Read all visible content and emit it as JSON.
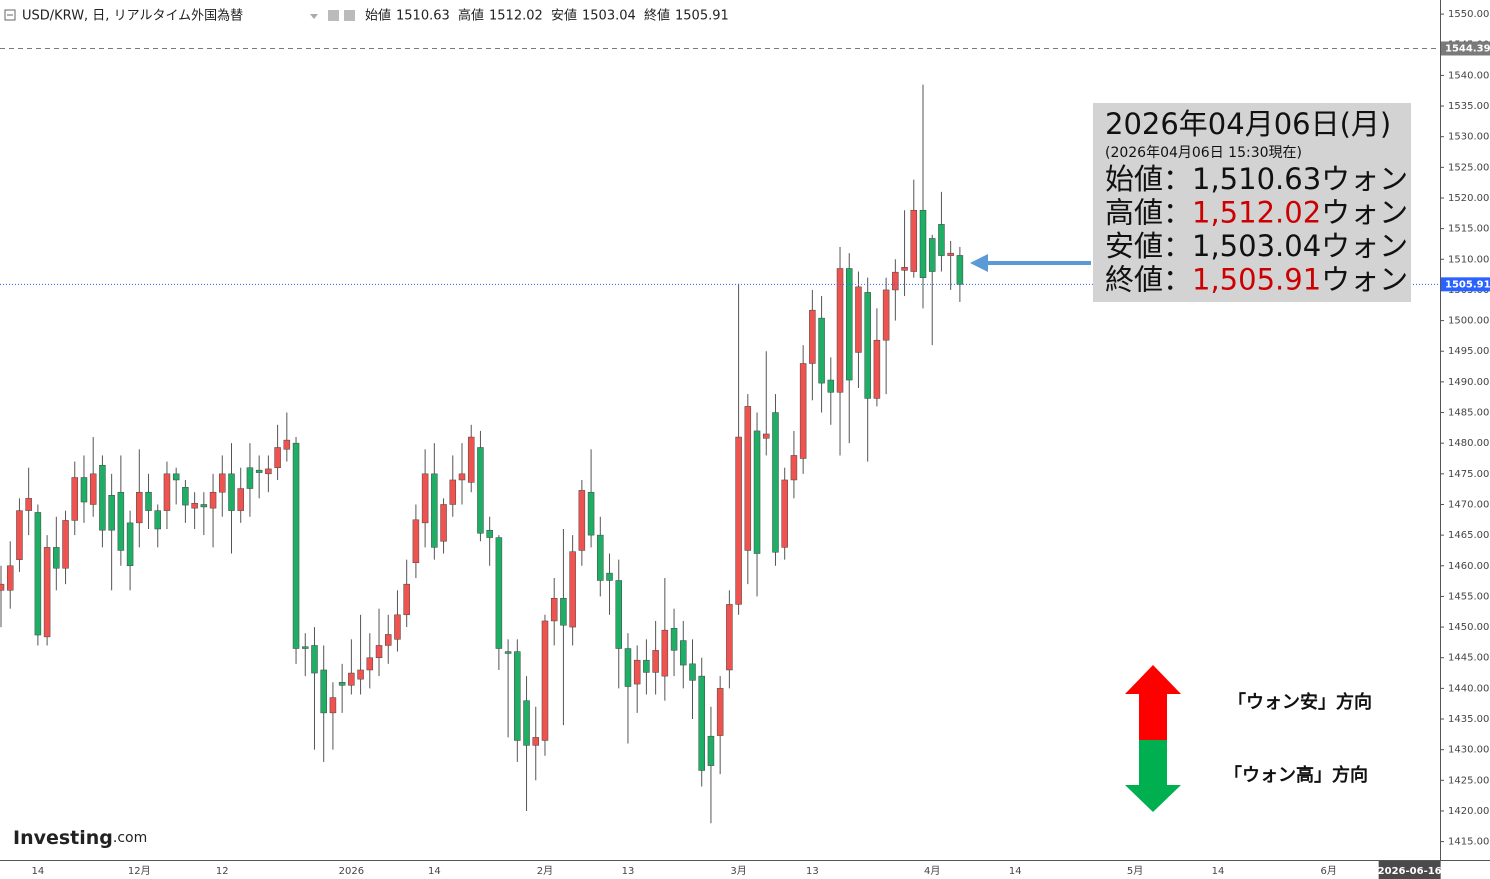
{
  "header": {
    "symbol": "USD/KRW, 日, リアルタイム外国為替",
    "ohlc_labels": [
      "始値",
      "高値",
      "安値",
      "終値"
    ]
  },
  "info_box": {
    "date": "2026年04月06日(月)",
    "as_of": "(2026年04月06日 15:30現在)",
    "rows": [
      {
        "label": "始値：",
        "value": "1,510.63",
        "unit": "ウォン",
        "color": "#111111"
      },
      {
        "label": "高値：",
        "value": "1,512.02",
        "unit": "ウォン",
        "color": "#cc0000"
      },
      {
        "label": "安値：",
        "value": "1,503.04",
        "unit": "ウォン",
        "color": "#111111"
      },
      {
        "label": "終値：",
        "value": "1,505.91",
        "unit": "ウォン",
        "color": "#cc0000"
      }
    ]
  },
  "legend": {
    "up": "「ウォン安」方向",
    "down": "「ウォン高」方向"
  },
  "logo": {
    "main": "Investing",
    "suffix": ".com"
  },
  "chart_data": {
    "type": "candlestick",
    "up_color": "#ef5350",
    "down_color": "#1fae66",
    "ylim": [
      1412,
      1552.3
    ],
    "yticks": [
      {
        "value": 1415,
        "label": "1415.00"
      },
      {
        "value": 1420,
        "label": "1420.00"
      },
      {
        "value": 1425,
        "label": "1425.00"
      },
      {
        "value": 1430,
        "label": "1430.00"
      },
      {
        "value": 1435,
        "label": "1435.00"
      },
      {
        "value": 1440,
        "label": "1440.00"
      },
      {
        "value": 1445,
        "label": "1445.00"
      },
      {
        "value": 1450,
        "label": "1450.00"
      },
      {
        "value": 1455,
        "label": "1455.00"
      },
      {
        "value": 1460,
        "label": "1460.00"
      },
      {
        "value": 1465,
        "label": "1465.00"
      },
      {
        "value": 1470,
        "label": "1470.00"
      },
      {
        "value": 1475,
        "label": "1475.00"
      },
      {
        "value": 1480,
        "label": "1480.00"
      },
      {
        "value": 1485,
        "label": "1485.00"
      },
      {
        "value": 1490,
        "label": "1490.00"
      },
      {
        "value": 1495,
        "label": "1495.00"
      },
      {
        "value": 1500,
        "label": "1500.00"
      },
      {
        "value": 1505,
        "label": "1505.00"
      },
      {
        "value": 1510,
        "label": "1510.00"
      },
      {
        "value": 1515,
        "label": "1515.00"
      },
      {
        "value": 1520,
        "label": "1520.00"
      },
      {
        "value": 1525,
        "label": "1525.00"
      },
      {
        "value": 1530,
        "label": "1530.00"
      },
      {
        "value": 1535,
        "label": "1535.00"
      },
      {
        "value": 1540,
        "label": "1540.00"
      },
      {
        "value": 1545,
        "label": "1545.00"
      },
      {
        "value": 1550,
        "label": "1550.00"
      }
    ],
    "price_lines": [
      {
        "value": 1544.39,
        "color": "#7a7a7a",
        "style": "dashed"
      },
      {
        "value": 1505.91,
        "color": "#2962ff",
        "style": "dotted"
      }
    ],
    "categories": [
      null,
      null,
      null,
      null,
      "14",
      null,
      null,
      null,
      null,
      null,
      null,
      null,
      null,
      null,
      null,
      "12月",
      null,
      null,
      null,
      null,
      null,
      null,
      null,
      null,
      "12",
      null,
      null,
      null,
      null,
      null,
      null,
      null,
      null,
      null,
      null,
      null,
      null,
      null,
      "2026",
      null,
      null,
      null,
      null,
      null,
      null,
      null,
      null,
      "14",
      null,
      null,
      null,
      null,
      null,
      null,
      null,
      null,
      null,
      null,
      null,
      "2月",
      null,
      null,
      null,
      null,
      null,
      null,
      null,
      null,
      "13",
      null,
      null,
      null,
      null,
      null,
      null,
      null,
      null,
      null,
      null,
      null,
      "3月",
      null,
      null,
      null,
      null,
      null,
      null,
      null,
      "13",
      null,
      null,
      null,
      null,
      null,
      null,
      null,
      null,
      null,
      null,
      null,
      null,
      "4月",
      null,
      null,
      null,
      null,
      null,
      null,
      null,
      null,
      "14",
      null,
      null,
      null,
      null,
      null,
      null,
      null,
      null,
      null,
      null,
      null,
      null,
      "5月",
      null,
      null,
      null,
      null,
      null,
      null,
      null,
      null,
      "14",
      null,
      null,
      null,
      null,
      null,
      null,
      null,
      null,
      null,
      null,
      null,
      "6月",
      null,
      null,
      null,
      null,
      null,
      null,
      null,
      null,
      "2026-06-16"
    ],
    "open": [
      1456,
      1456,
      1461,
      1469,
      1468.7,
      1448.4,
      1463,
      1459.6,
      1467.4,
      1474.4,
      1470,
      1476.4,
      1471.5,
      1472,
      1467,
      1467,
      1472,
      1469,
      1469,
      1475,
      1472.8,
      1469.4,
      1470,
      1469.4,
      1472,
      1475,
      1469,
      1476,
      1475.6,
      1475,
      1476,
      1479,
      1480,
      1446.8,
      1447,
      1443,
      1436,
      1441,
      1440.5,
      1441.5,
      1443,
      1445,
      1447,
      1448,
      1452,
      1460.5,
      1467,
      1475,
      1464,
      1470,
      1474,
      1473.6,
      1479.3,
      1465.8,
      1464.6,
      1446,
      1446,
      1438,
      1430.7,
      1431.5,
      1451,
      1454.7,
      1450,
      1462.5,
      1472,
      1465,
      1458.8,
      1457.6,
      1446.5,
      1440.7,
      1444.6,
      1442.6,
      1442,
      1449.8,
      1447.8,
      1444,
      1442,
      1432.2,
      1432.3,
      1443,
      1453.7,
      1462.5,
      1482,
      1480.8,
      1485,
      1463,
      1474,
      1477.5,
      1493,
      1500.4,
      1490.3,
      1488.3,
      1508.5,
      1494.8,
      1504.6,
      1487.3,
      1496.8,
      1505,
      1508.2,
      1508,
      1518,
      1513.4,
      1515.7,
      1510.6,
      1510.63,
      null,
      null,
      null,
      null,
      null,
      null,
      null,
      null,
      null,
      null,
      null,
      null,
      null,
      null,
      null,
      null,
      null,
      null,
      null,
      null,
      null,
      null,
      null,
      null,
      null,
      null,
      null,
      null,
      null,
      null,
      null,
      null,
      null,
      null,
      null,
      null,
      null,
      null,
      null,
      null,
      null,
      null,
      null,
      null,
      null,
      null,
      null,
      null,
      null
    ],
    "high": [
      1460,
      1464,
      1471,
      1476,
      1470,
      1465,
      1468,
      1469,
      1477,
      1478,
      1481,
      1478,
      1475,
      1478,
      1469,
      1479,
      1475,
      1470,
      1477,
      1476,
      1474,
      1472,
      1472,
      1475,
      1478,
      1480,
      1476,
      1480,
      1478,
      1478,
      1483,
      1485,
      1481,
      1449,
      1450,
      1447,
      1441,
      1444,
      1448,
      1452,
      1449,
      1453,
      1452,
      1456,
      1461,
      1470,
      1479,
      1480,
      1471,
      1478,
      1480,
      1483,
      1482,
      1468,
      1465,
      1448,
      1448,
      1442,
      1437,
      1452,
      1458,
      1466,
      1465,
      1474,
      1479,
      1468,
      1462,
      1461,
      1449,
      1447,
      1448,
      1451,
      1458,
      1453,
      1451,
      1448,
      1445,
      1437,
      1442,
      1456,
      1506,
      1488,
      1485,
      1495,
      1488,
      1476,
      1482,
      1496,
      1505,
      1504,
      1494,
      1512,
      1511,
      1508,
      1507,
      1502,
      1507,
      1510,
      1518,
      1523,
      1538.5,
      1514,
      1521,
      1513,
      1512.02,
      null,
      null,
      null,
      null,
      null,
      null,
      null,
      null,
      null,
      null,
      null,
      null,
      null,
      null,
      null,
      null,
      null,
      null,
      null,
      null,
      null,
      null,
      null,
      null,
      null,
      null,
      null,
      null,
      null,
      null,
      null,
      null,
      null,
      null,
      null,
      null,
      null,
      null,
      null,
      null,
      null,
      null,
      null,
      null,
      null,
      null,
      null,
      null,
      null
    ],
    "low": [
      1450,
      1453,
      1459,
      1465,
      1447,
      1447,
      1456,
      1457,
      1465,
      1467,
      1468,
      1463,
      1456,
      1460,
      1456,
      1463,
      1466,
      1463,
      1466,
      1470,
      1467,
      1466,
      1465,
      1463,
      1468,
      1462,
      1467,
      1468,
      1471,
      1472,
      1474,
      1477,
      1444,
      1442,
      1430,
      1428,
      1430,
      1436,
      1439,
      1439,
      1440,
      1442,
      1444,
      1446,
      1450,
      1458,
      1463,
      1461,
      1462,
      1468,
      1470,
      1472,
      1464,
      1460,
      1443,
      1432,
      1428,
      1420,
      1425,
      1429,
      1447,
      1434,
      1447,
      1460,
      1463,
      1455,
      1452,
      1440,
      1431,
      1436,
      1439,
      1439,
      1438,
      1442,
      1440,
      1435,
      1424,
      1418,
      1426,
      1440,
      1452,
      1457,
      1455,
      1478,
      1460,
      1461,
      1471,
      1475,
      1487,
      1485,
      1483,
      1478,
      1480,
      1489,
      1477,
      1486,
      1488,
      1500,
      1504,
      1507,
      1502,
      1496,
      1508,
      1505,
      1503.04,
      null,
      null,
      null,
      null,
      null,
      null,
      null,
      null,
      null,
      null,
      null,
      null,
      null,
      null,
      null,
      null,
      null,
      null,
      null,
      null,
      null,
      null,
      null,
      null,
      null,
      null,
      null,
      null,
      null,
      null,
      null,
      null,
      null,
      null,
      null,
      null,
      null,
      null,
      null,
      null,
      null,
      null,
      null,
      null,
      null,
      null,
      null,
      null,
      null
    ],
    "close": [
      1457,
      1460,
      1469,
      1471,
      1448.7,
      1463,
      1459.6,
      1467.4,
      1474.4,
      1470.4,
      1475,
      1465.8,
      1465.8,
      1462.5,
      1460,
      1472,
      1469,
      1466,
      1475,
      1474,
      1469.9,
      1470.2,
      1469.6,
      1472,
      1475,
      1469,
      1472.6,
      1472.6,
      1475.2,
      1475.8,
      1479.3,
      1480.5,
      1446.5,
      1446.5,
      1442.5,
      1436,
      1438.5,
      1440.5,
      1442.5,
      1443,
      1445,
      1447,
      1448.8,
      1452,
      1457,
      1467.5,
      1475,
      1463,
      1470,
      1474,
      1475,
      1481,
      1465.3,
      1464.6,
      1446.5,
      1445.7,
      1431.5,
      1430.7,
      1432,
      1451,
      1454.7,
      1450.3,
      1462.3,
      1472.3,
      1465,
      1457.6,
      1457.6,
      1446.5,
      1440.3,
      1444.6,
      1442.6,
      1446.2,
      1449.5,
      1446.2,
      1443.8,
      1441.3,
      1426.6,
      1427.4,
      1440,
      1453.7,
      1481,
      1486,
      1462,
      1481.5,
      1462.2,
      1474,
      1478,
      1493,
      1501.7,
      1489.8,
      1488.3,
      1508.5,
      1490.3,
      1505.5,
      1487.3,
      1496.8,
      1505,
      1507.9,
      1508.7,
      1518,
      1507,
      1508,
      1510.6,
      1511,
      1505.91,
      null,
      null,
      null,
      null,
      null,
      null,
      null,
      null,
      null,
      null,
      null,
      null,
      null,
      null,
      null,
      null,
      null,
      null,
      null,
      null,
      null,
      null,
      null,
      null,
      null,
      null,
      null,
      null,
      null,
      null,
      null,
      null,
      null,
      null,
      null,
      null,
      null,
      null,
      null,
      null,
      null,
      null,
      null,
      null,
      null,
      null,
      null,
      null,
      null
    ]
  }
}
